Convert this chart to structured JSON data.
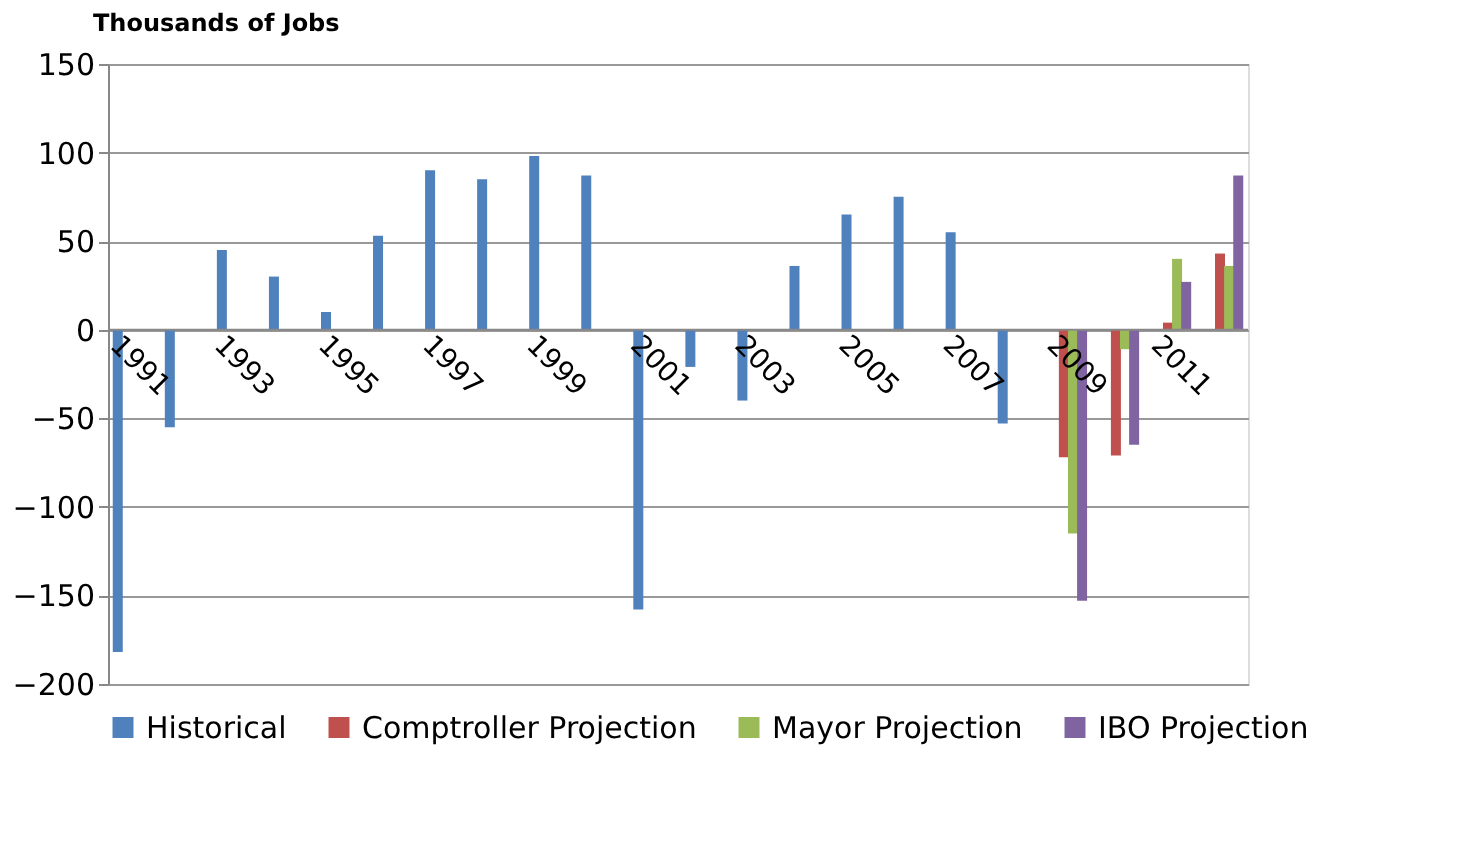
{
  "chart_data": {
    "type": "bar",
    "ylabel": "Thousands of Jobs",
    "categories": [
      "1991",
      null,
      "1993",
      null,
      "1995",
      null,
      "1997",
      null,
      "1999",
      null,
      "2001",
      null,
      "2003",
      null,
      "2005",
      null,
      "2007",
      null,
      "2009",
      null,
      "2011",
      null
    ],
    "series": [
      {
        "name": "Historical",
        "color": "#4f81bd",
        "values": [
          -182,
          -55,
          45,
          30,
          10,
          53,
          90,
          85,
          98,
          87,
          -158,
          -21,
          -40,
          36,
          65,
          75,
          55,
          -53,
          null,
          null,
          null,
          null
        ]
      },
      {
        "name": "Comptroller Projection",
        "color": "#c0504d",
        "values": [
          null,
          null,
          null,
          null,
          null,
          null,
          null,
          null,
          null,
          null,
          null,
          null,
          null,
          null,
          null,
          null,
          null,
          null,
          -72,
          -71,
          4,
          43
        ]
      },
      {
        "name": "Mayor Projection",
        "color": "#9bbb59",
        "values": [
          null,
          null,
          null,
          null,
          null,
          null,
          null,
          null,
          null,
          null,
          null,
          null,
          null,
          null,
          null,
          null,
          null,
          null,
          -115,
          -11,
          40,
          36
        ]
      },
      {
        "name": "IBO Projection",
        "color": "#8064a2",
        "values": [
          null,
          null,
          null,
          null,
          null,
          null,
          null,
          null,
          null,
          null,
          null,
          null,
          null,
          null,
          null,
          null,
          null,
          null,
          -153,
          -65,
          27,
          87
        ]
      }
    ],
    "ylim": [
      -200,
      150
    ],
    "yticks": [
      -200,
      -150,
      -100,
      -50,
      0,
      50,
      100,
      150
    ],
    "grid": "y",
    "legend": "bottom"
  }
}
